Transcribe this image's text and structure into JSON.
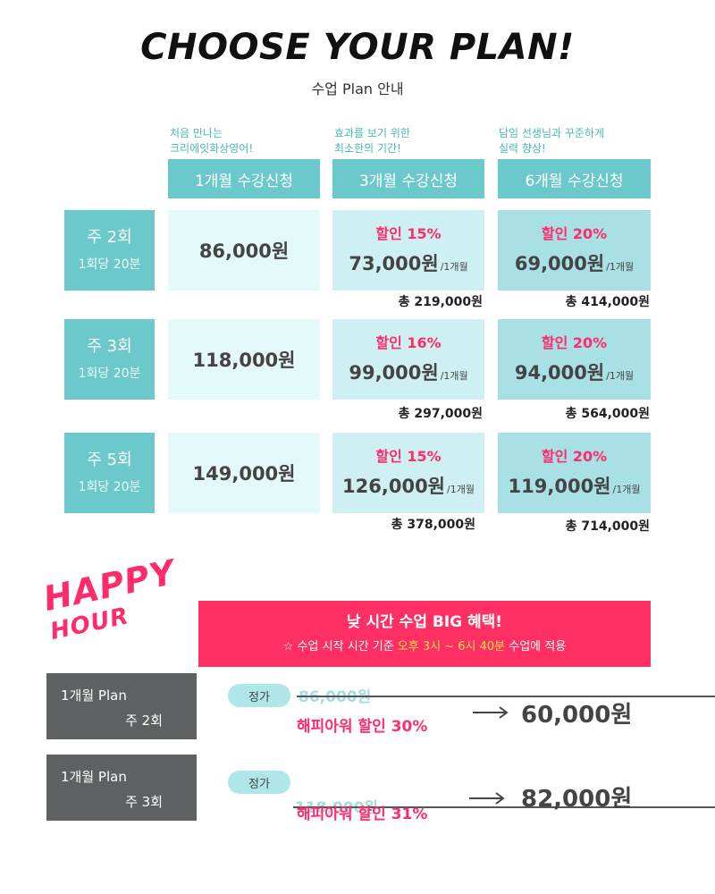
{
  "header": {
    "title": "CHOOSE YOUR PLAN!",
    "subtitle": "수업 Plan 안내"
  },
  "columns": [
    {
      "desc_line1": "처음 만나는",
      "desc_line2": "크리에잇화상영어!",
      "label": "1개월 수강신청"
    },
    {
      "desc_line1": "효과를 보기 위한",
      "desc_line2": "최소한의 기간!",
      "label": "3개월 수강신청"
    },
    {
      "desc_line1": "담임 선생님과 꾸준하게",
      "desc_line2": "실력 향상!",
      "label": "6개월 수강신청"
    }
  ],
  "rows": [
    {
      "freq": "주 2회",
      "session": "1회당 20분",
      "m1_price": "86,000원",
      "m3_discount": "할인 15%",
      "m3_price": "73,000원",
      "m3_per": "/1개월",
      "m3_total": "총 219,000원",
      "m6_discount": "할인 20%",
      "m6_price": "69,000원",
      "m6_per": "/1개월",
      "m6_total": "총 414,000원"
    },
    {
      "freq": "주 3회",
      "session": "1회당 20분",
      "m1_price": "118,000원",
      "m3_discount": "할인 16%",
      "m3_price": "99,000원",
      "m3_per": "/1개월",
      "m3_total": "총 297,000원",
      "m6_discount": "할인 20%",
      "m6_price": "94,000원",
      "m6_per": "/1개월",
      "m6_total": "총 564,000원"
    },
    {
      "freq": "주 5회",
      "session": "1회당 20분",
      "m1_price": "149,000원",
      "m3_discount": "할인 15%",
      "m3_price": "126,000원",
      "m3_per": "/1개월",
      "m3_total": "총 378,000원",
      "m6_discount": "할인 20%",
      "m6_price": "119,000원",
      "m6_per": "/1개월",
      "m6_total": "총 714,000원"
    }
  ],
  "happy_hour": {
    "logo_line1": "HAPPY",
    "logo_line2": "HOUR",
    "banner_title": "낮 시간 수업 BIG 혜택!",
    "banner_sub_prefix": "☆ 수업 시작 시간 기준 ",
    "banner_sub_highlight": "오후 3시 ~ 6시 40분",
    "banner_sub_suffix": " 수업에 적용",
    "plans": [
      {
        "plan_label": "1개월 Plan",
        "freq": "주 2회",
        "pill": "정가",
        "original": "86,000원",
        "discount": "해피아워 할인 30%",
        "price": "60,000원"
      },
      {
        "plan_label": "1개월 Plan",
        "freq": "주 3회",
        "pill": "정가",
        "original": "118,000원",
        "discount": "해피아워 할인 31%",
        "price": "82,000원"
      }
    ]
  },
  "colors": {
    "teal": "#6cc9cb",
    "pink": "#ff2b6a",
    "banner": "#ff2f63",
    "dark_box": "#5f6061",
    "highlight": "#ffe24a"
  },
  "icons": {
    "arrow": "arrow-right-icon"
  }
}
